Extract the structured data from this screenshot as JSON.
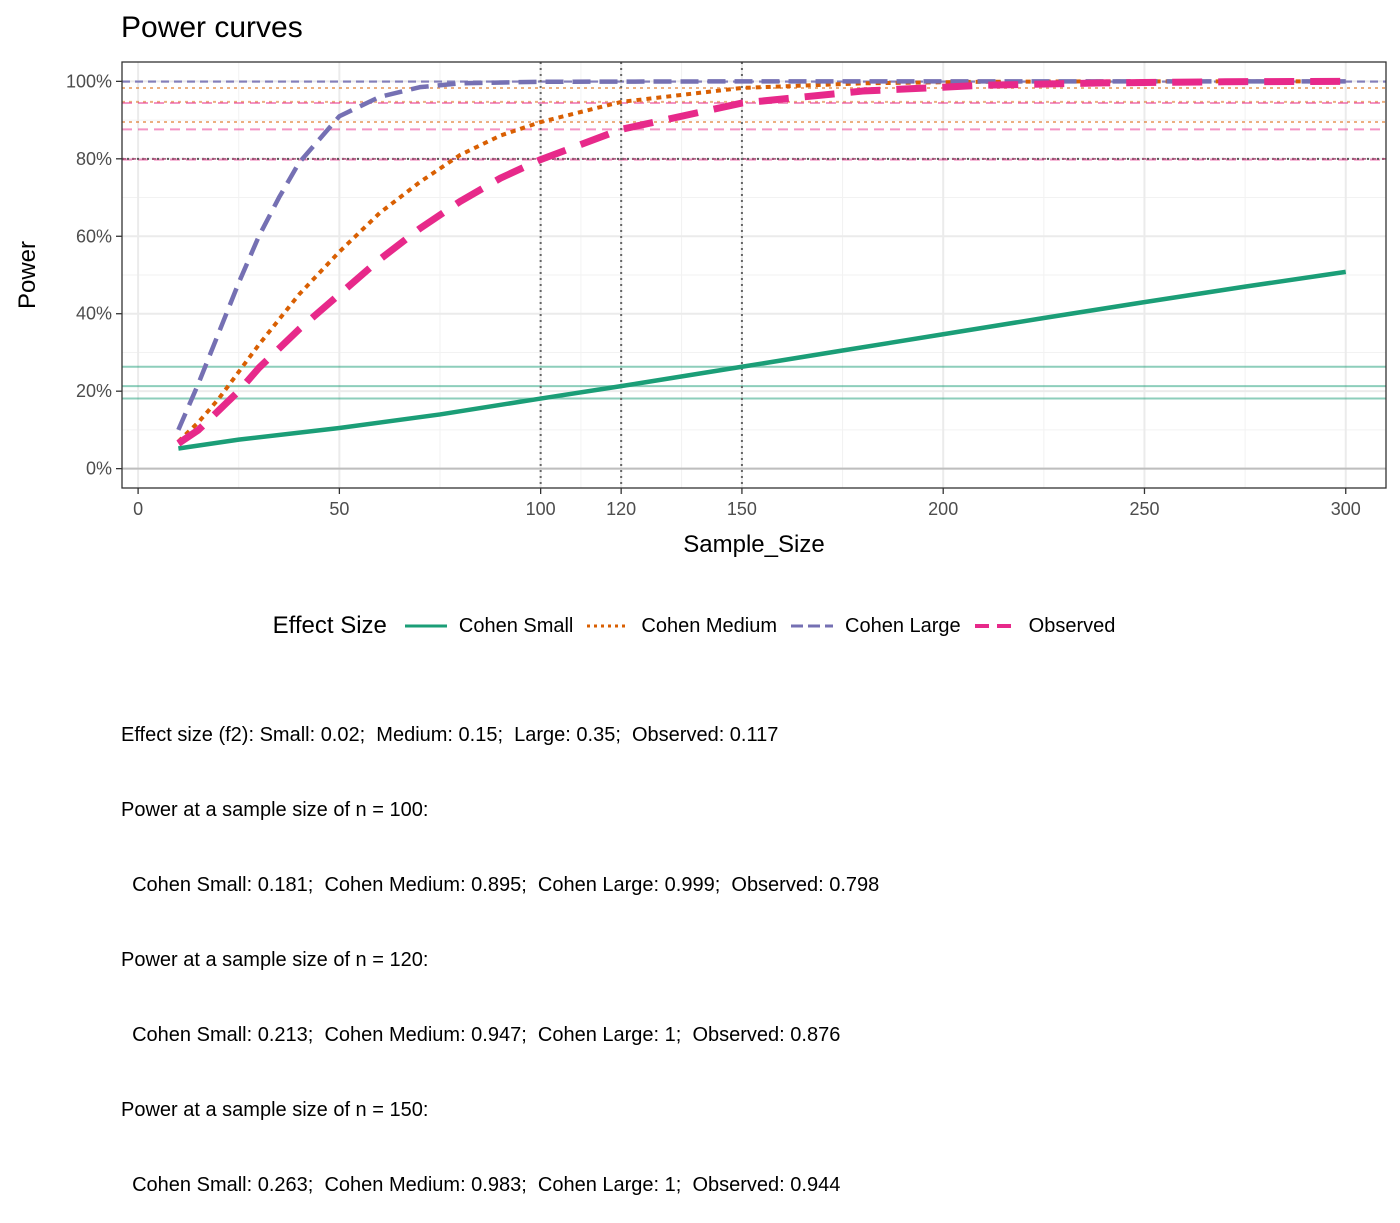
{
  "chart_data": {
    "type": "line",
    "title": "Power curves",
    "xlabel": "Sample_Size",
    "ylabel": "Power",
    "xlim": [
      -4,
      310
    ],
    "ylim": [
      -0.05,
      1.05
    ],
    "x_ticks": [
      0,
      50,
      100,
      120,
      150,
      200,
      250,
      300
    ],
    "x_tick_labels": [
      "0",
      "50",
      "100",
      "120",
      "150",
      "200",
      "250",
      "300"
    ],
    "y_ticks": [
      0,
      0.2,
      0.4,
      0.6,
      0.8,
      1.0
    ],
    "y_tick_labels": [
      "0%",
      "20%",
      "40%",
      "60%",
      "80%",
      "100%"
    ],
    "grid": true,
    "legend_position": "bottom",
    "legend_title": "Effect Size",
    "target_power": 0.8,
    "reference_sample_sizes": [
      100,
      120,
      150
    ],
    "series": [
      {
        "name": "Cohen Small",
        "color": "#1B9E77",
        "linestyle": "solid",
        "x": [
          10,
          25,
          50,
          75,
          100,
          120,
          150,
          175,
          200,
          225,
          250,
          275,
          300
        ],
        "values": [
          0.052,
          0.075,
          0.105,
          0.14,
          0.181,
          0.213,
          0.263,
          0.305,
          0.347,
          0.389,
          0.43,
          0.47,
          0.508
        ]
      },
      {
        "name": "Cohen Medium",
        "color": "#D95F02",
        "linestyle": "dotted",
        "x": [
          10,
          15,
          20,
          25,
          30,
          40,
          50,
          60,
          70,
          80,
          90,
          100,
          120,
          150,
          180,
          210,
          240,
          270,
          300
        ],
        "values": [
          0.07,
          0.12,
          0.18,
          0.25,
          0.32,
          0.45,
          0.56,
          0.66,
          0.74,
          0.81,
          0.86,
          0.895,
          0.947,
          0.983,
          0.995,
          0.999,
          1.0,
          1.0,
          1.0
        ]
      },
      {
        "name": "Cohen Large",
        "color": "#7570B3",
        "linestyle": "dashed",
        "x": [
          10,
          15,
          20,
          25,
          30,
          35,
          40,
          50,
          60,
          70,
          80,
          100,
          150,
          200,
          300
        ],
        "values": [
          0.1,
          0.22,
          0.35,
          0.48,
          0.6,
          0.7,
          0.79,
          0.91,
          0.96,
          0.985,
          0.995,
          0.999,
          1.0,
          1.0,
          1.0
        ]
      },
      {
        "name": "Observed",
        "color": "#E7298A",
        "linestyle": "longdash",
        "x": [
          10,
          15,
          20,
          25,
          30,
          40,
          50,
          60,
          70,
          80,
          90,
          100,
          120,
          150,
          180,
          210,
          240,
          270,
          300
        ],
        "values": [
          0.065,
          0.1,
          0.15,
          0.2,
          0.26,
          0.36,
          0.45,
          0.54,
          0.62,
          0.69,
          0.75,
          0.798,
          0.876,
          0.944,
          0.975,
          0.99,
          0.996,
          0.999,
          1.0
        ]
      }
    ]
  },
  "caption_lines": [
    "Effect size (f2): Small: 0.02;  Medium: 0.15;  Large: 0.35;  Observed: 0.117",
    "Power at a sample size of n = 100:",
    "  Cohen Small: 0.181;  Cohen Medium: 0.895;  Cohen Large: 0.999;  Observed: 0.798",
    "Power at a sample size of n = 120:",
    "  Cohen Small: 0.213;  Cohen Medium: 0.947;  Cohen Large: 1;  Observed: 0.876",
    "Power at a sample size of n = 150:",
    "  Cohen Small: 0.263;  Cohen Medium: 0.983;  Cohen Large: 1;  Observed: 0.944"
  ]
}
